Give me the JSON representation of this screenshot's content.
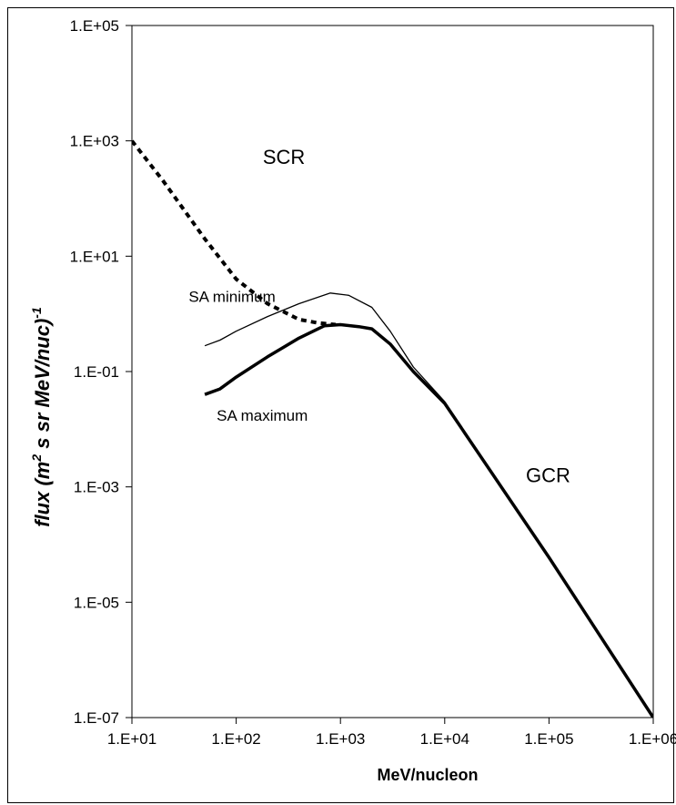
{
  "chart_data": {
    "type": "line",
    "xlabel": "MeV/nucleon",
    "ylabel_main": "flux (m",
    "ylabel_sup1": "2",
    "ylabel_mid": " s sr MeV/nuc)",
    "ylabel_sup2": "-1",
    "x_scale": "log",
    "y_scale": "log",
    "xlim": [
      10,
      1000000
    ],
    "ylim": [
      1e-07,
      100000
    ],
    "x_ticks": [
      {
        "value": 10,
        "label": "1.E+01"
      },
      {
        "value": 100,
        "label": "1.E+02"
      },
      {
        "value": 1000,
        "label": "1.E+03"
      },
      {
        "value": 10000,
        "label": "1.E+04"
      },
      {
        "value": 100000,
        "label": "1.E+05"
      },
      {
        "value": 1000000,
        "label": "1.E+06"
      }
    ],
    "y_ticks": [
      {
        "value": 100000,
        "label": "1.E+05"
      },
      {
        "value": 1000,
        "label": "1.E+03"
      },
      {
        "value": 10,
        "label": "1.E+01"
      },
      {
        "value": 0.1,
        "label": "1.E-01"
      },
      {
        "value": 0.001,
        "label": "1.E-03"
      },
      {
        "value": 1e-05,
        "label": "1.E-05"
      },
      {
        "value": 1e-07,
        "label": "1.E-07"
      }
    ],
    "grid": false,
    "legend": "none",
    "series": [
      {
        "style": "dashed",
        "x": [
          10,
          20,
          50,
          100,
          200,
          400,
          600,
          900
        ],
        "y": [
          1000,
          200,
          20,
          4,
          1.5,
          0.8,
          0.7,
          0.65
        ]
      },
      {
        "style": "thin",
        "x": [
          50,
          70,
          100,
          200,
          400,
          800,
          1200,
          2000,
          3000,
          5000,
          10000,
          100000,
          1000000
        ],
        "y": [
          0.28,
          0.35,
          0.5,
          0.9,
          1.5,
          2.3,
          2.1,
          1.3,
          0.5,
          0.12,
          0.03,
          6e-05,
          1e-07
        ]
      },
      {
        "style": "thick",
        "x": [
          50,
          70,
          100,
          200,
          400,
          700,
          1000,
          1500,
          2000,
          3000,
          5000,
          10000,
          100000,
          1000000
        ],
        "y": [
          0.04,
          0.05,
          0.08,
          0.18,
          0.38,
          0.62,
          0.65,
          0.6,
          0.55,
          0.3,
          0.1,
          0.028,
          6e-05,
          1e-07
        ]
      }
    ],
    "annotations": [
      {
        "text": "SCR",
        "x": 180,
        "y": 400
      },
      {
        "text": "SA minimum",
        "x": 35,
        "y": 1.6
      },
      {
        "text": "SA maximum",
        "x": 65,
        "y": 0.014
      },
      {
        "text": "GCR",
        "x": 60000,
        "y": 0.0012
      }
    ]
  }
}
